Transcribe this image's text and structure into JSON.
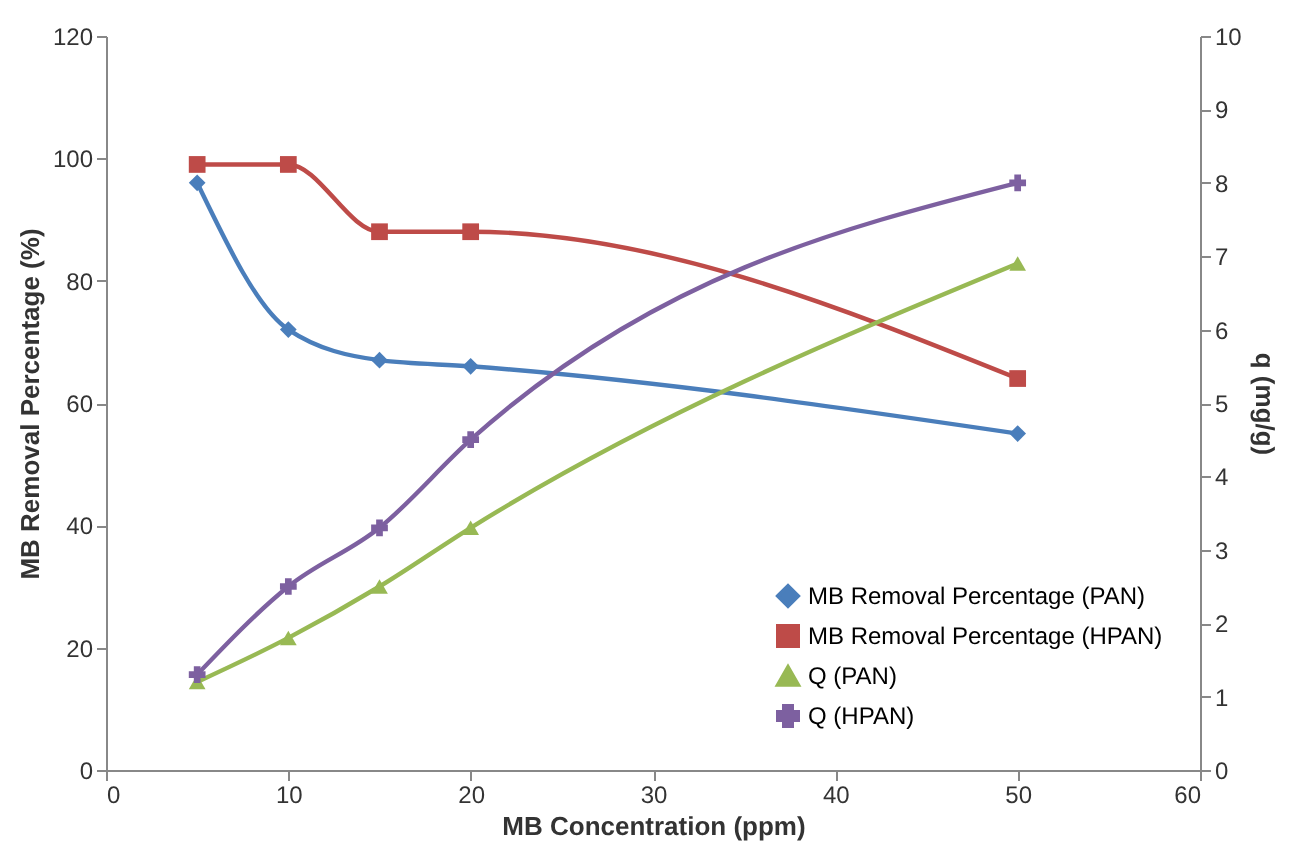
{
  "chart_data": {
    "type": "line",
    "xlabel": "MB Concentration (ppm)",
    "ylabel": "MB Removal Percentage (%)",
    "y2label": "q (mg/g)",
    "x": [
      5,
      10,
      15,
      20,
      50
    ],
    "series": [
      {
        "name": "MB Removal Percentage (PAN)",
        "color": "#4a7ebb",
        "marker": "diamond",
        "values": [
          96,
          72,
          67,
          66,
          55
        ]
      },
      {
        "name": "MB Removal Percentage (HPAN)",
        "color": "#be4b48",
        "marker": "square",
        "values": [
          99,
          99,
          88,
          88,
          64
        ]
      },
      {
        "name": "Q (PAN)",
        "color": "#98b954",
        "marker": "triangle",
        "axis": "y2",
        "values": [
          1.2,
          1.8,
          2.5,
          3.3,
          6.9
        ]
      },
      {
        "name": "Q (HPAN)",
        "color": "#7d60a0",
        "marker": "cross",
        "axis": "y2",
        "values": [
          1.3,
          2.5,
          3.3,
          4.5,
          8.0
        ]
      }
    ],
    "xlim": [
      0,
      60
    ],
    "xticks": [
      0,
      10,
      20,
      30,
      40,
      50,
      60
    ],
    "ylim": [
      0,
      120
    ],
    "yticks": [
      0,
      20,
      40,
      60,
      80,
      100,
      120
    ],
    "y2lim": [
      0,
      10
    ],
    "y2ticks": [
      0,
      1,
      2,
      3,
      4,
      5,
      6,
      7,
      8,
      9,
      10
    ],
    "line_style": "solid",
    "legend": "bottom right",
    "grid": false
  }
}
